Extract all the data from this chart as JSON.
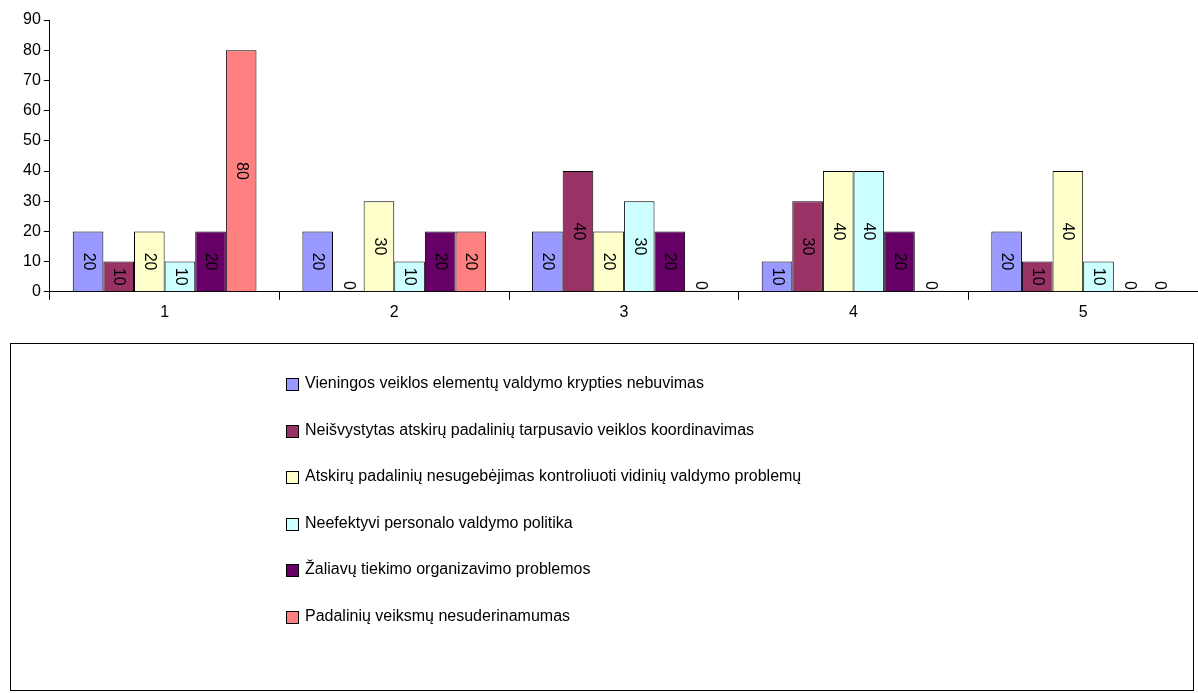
{
  "chart_data": {
    "type": "bar",
    "categories": [
      "1",
      "2",
      "3",
      "4",
      "5"
    ],
    "series": [
      {
        "name": "Vieningos veiklos elementų valdymo krypties nebuvimas",
        "color": "#9999ff",
        "values": [
          20,
          20,
          20,
          10,
          20
        ]
      },
      {
        "name": "Neišvystytas atskirų padalinių tarpusavio veiklos koordinavimas",
        "color": "#993366",
        "values": [
          10,
          0,
          40,
          30,
          10
        ]
      },
      {
        "name": "Atskirų padalinių nesugebėjimas kontroliuoti vidinių valdymo problemų",
        "color": "#ffffcc",
        "values": [
          20,
          30,
          20,
          40,
          40
        ]
      },
      {
        "name": "Neefektyvi personalo valdymo politika",
        "color": "#ccffff",
        "values": [
          10,
          10,
          30,
          40,
          10
        ]
      },
      {
        "name": "Žaliavų tiekimo organizavimo problemos",
        "color": "#660066",
        "values": [
          20,
          20,
          20,
          20,
          0
        ]
      },
      {
        "name": "Padalinių veiksmų nesuderinamumas",
        "color": "#ff8080",
        "values": [
          80,
          20,
          0,
          0,
          0
        ]
      }
    ],
    "ylim": [
      0,
      90
    ],
    "yticks": [
      0,
      10,
      20,
      30,
      40,
      50,
      60,
      70,
      80,
      90
    ],
    "grid": false,
    "legend": "bottom",
    "data_labels": true
  }
}
